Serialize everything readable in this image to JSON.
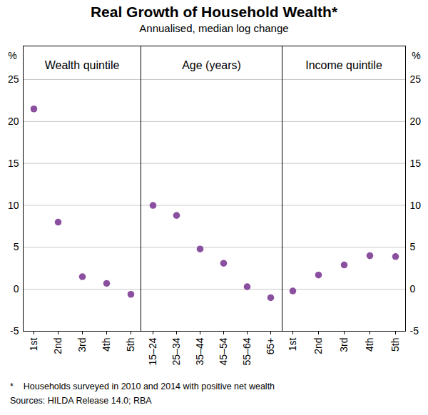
{
  "title": "Real Growth of Household Wealth*",
  "subtitle": "Annualised, median log change",
  "notes": [
    "*    Households surveyed in 2010 and 2014 with positive net wealth",
    "Sources: HILDA Release 14.0; RBA"
  ],
  "chart_data": [
    {
      "type": "scatter",
      "title": "Wealth quintile",
      "categories": [
        "1st",
        "2nd",
        "3rd",
        "4th",
        "5th"
      ],
      "values": [
        21.5,
        8.0,
        1.5,
        0.7,
        -0.6
      ],
      "color": "#8b4fa0",
      "marker": "circle",
      "ylabel": "%",
      "ylim": [
        -5,
        29
      ],
      "yticks": [
        -5,
        0,
        5,
        10,
        15,
        20,
        25
      ],
      "grid": true
    },
    {
      "type": "scatter",
      "title": "Age (years)",
      "categories": [
        "15–24",
        "25–34",
        "35–44",
        "45–54",
        "55–64",
        "65+"
      ],
      "values": [
        10.0,
        8.8,
        4.8,
        3.1,
        0.3,
        -1.0
      ],
      "color": "#8b4fa0",
      "marker": "circle",
      "ylim": [
        -5,
        29
      ],
      "yticks": [
        -5,
        0,
        5,
        10,
        15,
        20,
        25
      ],
      "grid": true,
      "tick_labels": "x"
    },
    {
      "type": "scatter",
      "title": "Income quintile",
      "categories": [
        "1st",
        "2nd",
        "3rd",
        "4th",
        "5th"
      ],
      "values": [
        -0.2,
        1.7,
        2.9,
        4.0,
        3.9
      ],
      "color": "#8b4fa0",
      "marker": "circle",
      "ylabel": "%",
      "ylim": [
        -5,
        29
      ],
      "yticks": [
        -5,
        0,
        5,
        10,
        15,
        20,
        25
      ],
      "grid": true
    }
  ]
}
